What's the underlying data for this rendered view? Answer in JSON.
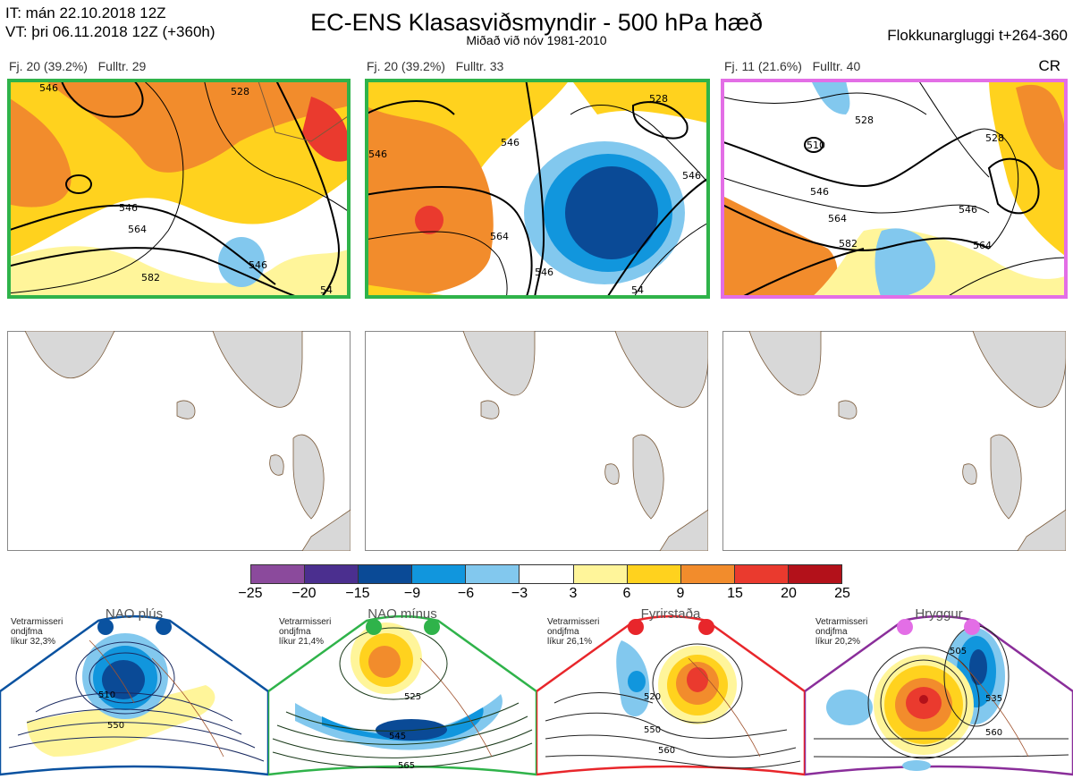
{
  "header": {
    "it_line": "IT: mán 22.10.2018 12Z",
    "vt_line": "VT: þri 06.11.2018 12Z  (+360h)",
    "title": "EC-ENS Klasasviðsmyndir - 500 hPa hæð",
    "subtitle": "Miðað við nóv 1981-2010",
    "window": "Flokkunargluggi t+264-360"
  },
  "clusters": [
    {
      "label": "Fj. 20 (39.2%)",
      "rep": "Fulltr. 29",
      "contours": [
        "546",
        "528",
        "546",
        "564",
        "582",
        "546",
        "54"
      ]
    },
    {
      "label": "Fj. 20 (39.2%)",
      "rep": "Fulltr. 33",
      "contours": [
        "546",
        "528",
        "546",
        "564",
        "546",
        "546",
        "54"
      ]
    },
    {
      "label": "Fj. 11 (21.6%)",
      "rep": "Fulltr. 40",
      "contours": [
        "510",
        "528",
        "528",
        "546",
        "564",
        "582",
        "546",
        "564"
      ],
      "extra": "CR"
    }
  ],
  "colorbar": {
    "ticks": [
      "−25",
      "−20",
      "−15",
      "−9",
      "−6",
      "−3",
      "3",
      "6",
      "9",
      "15",
      "20",
      "25"
    ],
    "colors": [
      "#8b4a9c",
      "#4b2f8f",
      "#0a4a96",
      "#1196dd",
      "#82c8ee",
      "#ffffff",
      "#fff59a",
      "#ffd21e",
      "#f28c2c",
      "#ea3a2e",
      "#b3111a"
    ]
  },
  "regimes": [
    {
      "name": "NAO plús",
      "note": [
        "Vetrarmisseri",
        "ondjfma",
        "líkur 32,3%"
      ],
      "color": "#0a52a0",
      "labels": [
        "510",
        "550"
      ]
    },
    {
      "name": "NAO mínus",
      "note": [
        "Vetrarmisseri",
        "ondjfma",
        "líkur 21,4%"
      ],
      "color": "#2fb34a",
      "labels": [
        "525",
        "545",
        "565"
      ]
    },
    {
      "name": "Fyrirstaða",
      "note": [
        "Vetrarmisseri",
        "ondjfma",
        "líkur 26,1%"
      ],
      "color": "#e8262b",
      "labels": [
        "520",
        "550",
        "560"
      ]
    },
    {
      "name": "Hryggur",
      "note": [
        "Vetrarmisseri",
        "ondjfma",
        "líkur 20,2%"
      ],
      "color": "#e36ee6",
      "labels": [
        "505",
        "535",
        "560"
      ]
    }
  ]
}
